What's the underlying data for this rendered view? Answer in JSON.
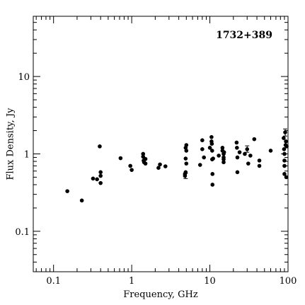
{
  "chart_data": {
    "type": "scatter",
    "title": "1732+389",
    "xlabel": "Frequency, GHz",
    "ylabel": "Flux Density, Jy",
    "xscale": "log",
    "yscale": "log",
    "xlim": [
      0.055,
      100
    ],
    "ylim": [
      0.03,
      60
    ],
    "x_ticks": [
      {
        "value": 0.1,
        "label": "0.1"
      },
      {
        "value": 1,
        "label": "1"
      },
      {
        "value": 10,
        "label": "10"
      },
      {
        "value": 100,
        "label": "100"
      }
    ],
    "y_ticks": [
      {
        "value": 0.1,
        "label": "0.1"
      },
      {
        "value": 1,
        "label": "1"
      },
      {
        "value": 10,
        "label": "10"
      }
    ],
    "grid": false,
    "series": [
      {
        "points": [
          [
            0.15,
            0.33
          ],
          [
            0.23,
            0.25
          ],
          [
            0.32,
            0.48
          ],
          [
            0.36,
            0.47
          ],
          [
            0.39,
            1.25
          ],
          [
            0.4,
            0.52
          ],
          [
            0.4,
            0.58
          ],
          [
            0.4,
            0.42
          ],
          [
            0.72,
            0.88
          ],
          [
            0.96,
            0.7
          ],
          [
            1.0,
            0.62
          ],
          [
            1.4,
            1.0
          ],
          [
            1.4,
            0.92
          ],
          [
            1.42,
            0.82
          ],
          [
            1.44,
            0.78
          ],
          [
            1.5,
            0.75
          ],
          [
            1.5,
            0.86
          ],
          [
            2.2,
            0.66
          ],
          [
            2.3,
            0.73
          ],
          [
            2.7,
            0.69
          ],
          [
            4.8,
            0.52
          ],
          [
            4.8,
            0.55
          ],
          [
            4.9,
            0.58
          ],
          [
            4.9,
            0.87
          ],
          [
            4.9,
            1.2
          ],
          [
            5.0,
            1.1
          ],
          [
            5.0,
            1.3
          ],
          [
            5.0,
            0.75
          ],
          [
            7.5,
            0.72
          ],
          [
            8.0,
            1.5
          ],
          [
            8.0,
            1.15
          ],
          [
            8.4,
            0.9
          ],
          [
            10.0,
            1.2
          ],
          [
            10.5,
            1.65
          ],
          [
            10.5,
            1.45
          ],
          [
            10.6,
            1.35
          ],
          [
            10.7,
            1.1
          ],
          [
            10.7,
            0.85
          ],
          [
            10.8,
            0.55
          ],
          [
            10.8,
            0.4
          ],
          [
            11.0,
            0.87
          ],
          [
            13.0,
            0.95
          ],
          [
            14.5,
            1.2
          ],
          [
            14.5,
            1.1
          ],
          [
            15.0,
            1.0
          ],
          [
            15.0,
            0.9
          ],
          [
            15.0,
            0.85
          ],
          [
            15.0,
            0.78
          ],
          [
            15.2,
            1.05
          ],
          [
            22.0,
            1.4
          ],
          [
            22.2,
            1.2
          ],
          [
            22.5,
            0.9
          ],
          [
            22.5,
            0.58
          ],
          [
            24.0,
            1.05
          ],
          [
            28.0,
            1.0
          ],
          [
            30.0,
            1.15
          ],
          [
            31.0,
            0.75
          ],
          [
            33.0,
            0.95
          ],
          [
            37.0,
            1.55
          ],
          [
            43.0,
            0.82
          ],
          [
            43.0,
            0.7
          ],
          [
            60.0,
            1.1
          ],
          [
            88.0,
            1.6
          ],
          [
            89.0,
            1.15
          ],
          [
            90.0,
            1.0
          ],
          [
            90.0,
            0.82
          ],
          [
            90.0,
            0.55
          ],
          [
            90.0,
            0.7
          ],
          [
            92.0,
            1.9
          ],
          [
            93.0,
            1.3
          ],
          [
            94.0,
            1.45
          ],
          [
            95.0,
            0.5
          ],
          [
            96.0,
            1.25
          ]
        ],
        "error_bars": [
          {
            "x": 4.9,
            "y": 0.52,
            "y_low": 0.48,
            "y_high": 0.56
          },
          {
            "x": 30.0,
            "y": 1.15,
            "y_low": 1.05,
            "y_high": 1.27
          },
          {
            "x": 92.0,
            "y": 1.9,
            "y_low": 1.7,
            "y_high": 2.1
          }
        ]
      }
    ]
  }
}
